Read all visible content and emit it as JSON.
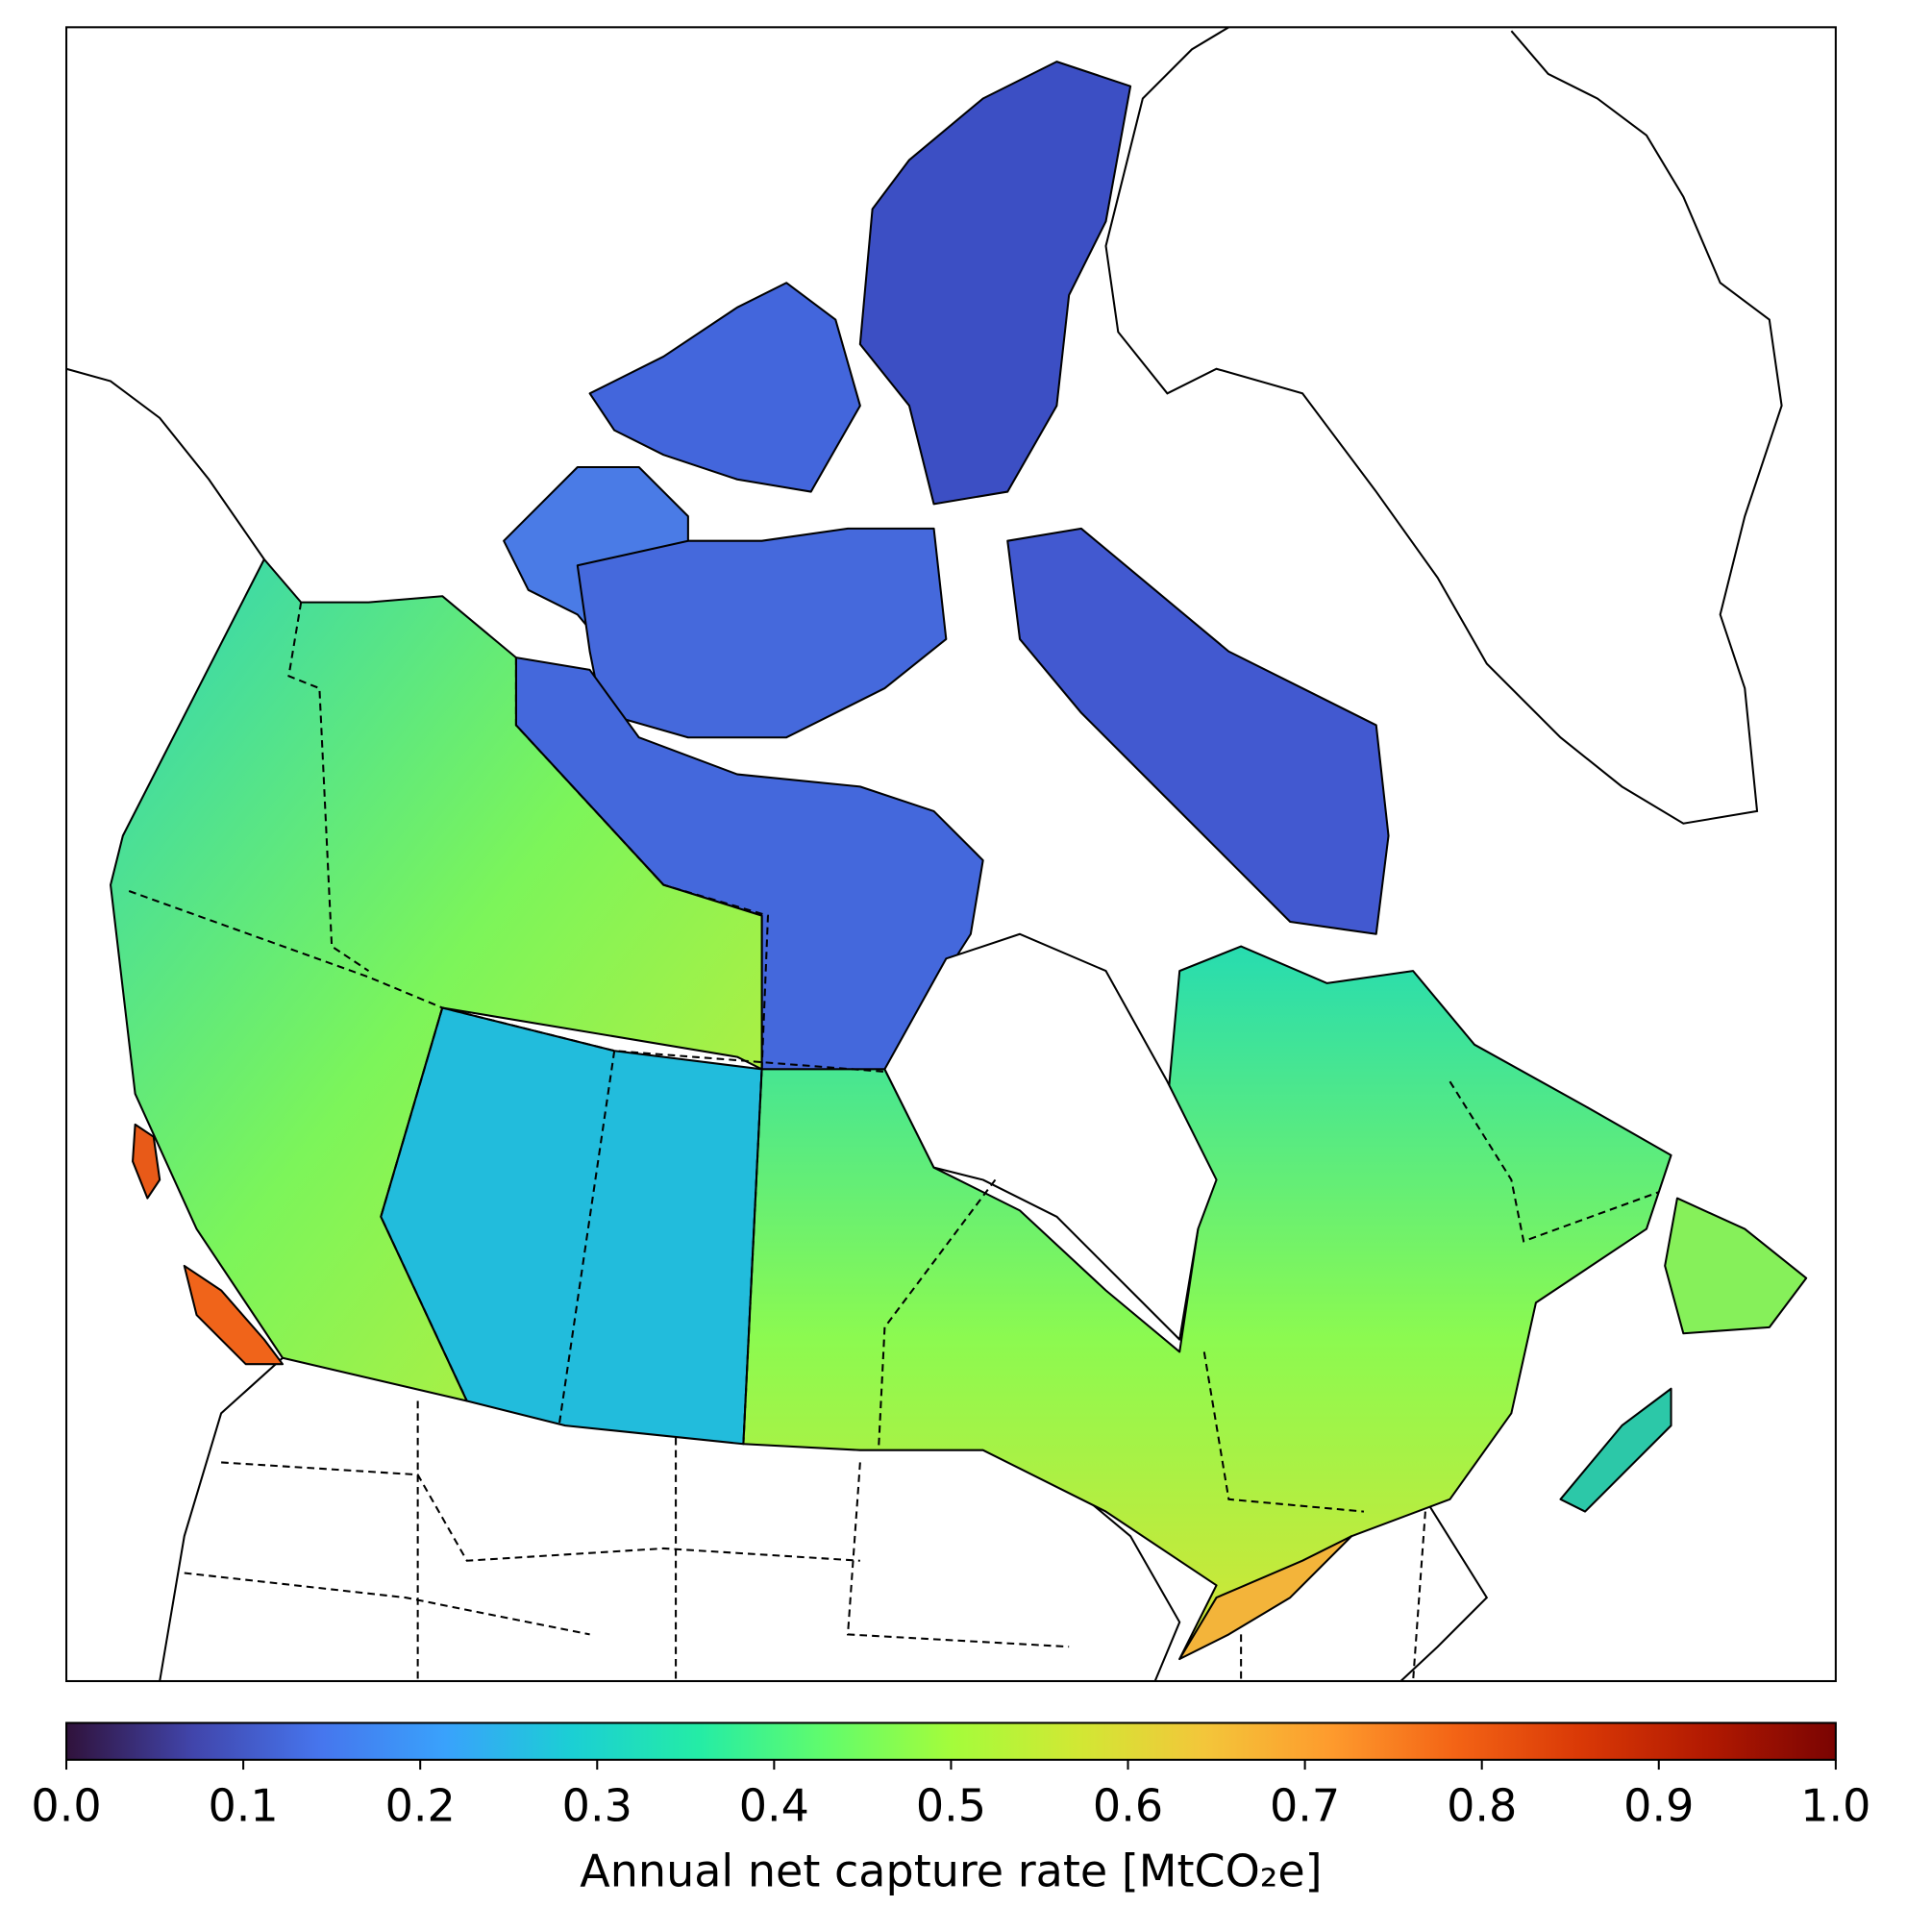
{
  "map": {
    "colorbar": {
      "label": "Annual net capture rate [MtCO₂e]",
      "lim": [
        0,
        1
      ],
      "ticks": [
        {
          "value": 0,
          "label": "0.0"
        },
        0.1,
        0.2,
        0.3,
        0.4,
        0.5,
        0.6,
        0.7,
        0.8,
        0.9,
        {
          "value": 1,
          "label": "1.0"
        }
      ],
      "colormap": "turbo",
      "colors": [
        "#30123b",
        "#4145ab",
        "#4675ed",
        "#39a2fc",
        "#1bcfd4",
        "#24eca6",
        "#61fc6c",
        "#a4fc3b",
        "#d1e834",
        "#f3c63a",
        "#fe9b2d",
        "#f36315",
        "#d93806",
        "#b11901",
        "#7a0402"
      ]
    }
  }
}
